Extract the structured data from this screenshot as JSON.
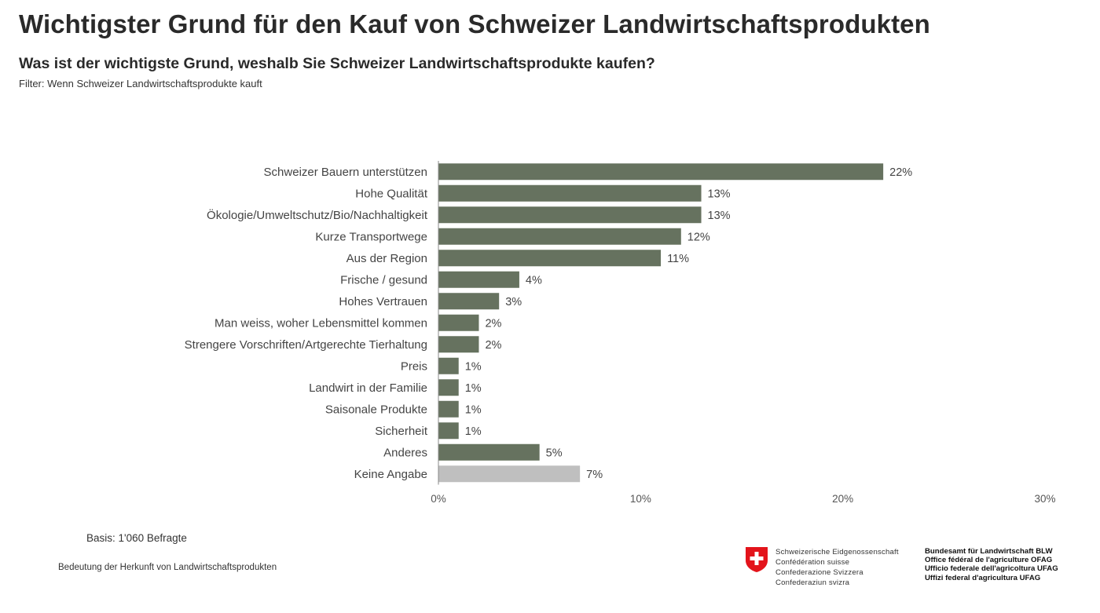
{
  "header": {
    "title": "Wichtigster Grund für den Kauf von Schweizer Landwirtschaftsprodukten",
    "subtitle": "Was ist der wichtigste Grund, weshalb Sie Schweizer Landwirtschaftsprodukte kaufen?",
    "filter": "Filter: Wenn Schweizer Landwirtschaftsprodukte  kauft"
  },
  "chart_data": {
    "type": "bar",
    "orientation": "horizontal",
    "categories": [
      "Schweizer Bauern unterstützen",
      "Hohe Qualität",
      "Ökologie/Umweltschutz/Bio/Nachhaltigkeit",
      "Kurze Transportwege",
      "Aus der Region",
      "Frische / gesund",
      "Hohes Vertrauen",
      "Man weiss, woher Lebensmittel kommen",
      "Strengere Vorschriften/Artgerechte Tierhaltung",
      "Preis",
      "Landwirt in der Familie",
      "Saisonale Produkte",
      "Sicherheit",
      "Anderes",
      "Keine Angabe"
    ],
    "values": [
      22,
      13,
      13,
      12,
      11,
      4,
      3,
      2,
      2,
      1,
      1,
      1,
      1,
      5,
      7
    ],
    "value_labels": [
      "22%",
      "13%",
      "13%",
      "12%",
      "11%",
      "4%",
      "3%",
      "2%",
      "2%",
      "1%",
      "1%",
      "1%",
      "1%",
      "5%",
      "7%"
    ],
    "bar_colors": [
      "#66725f",
      "#66725f",
      "#66725f",
      "#66725f",
      "#66725f",
      "#66725f",
      "#66725f",
      "#66725f",
      "#66725f",
      "#66725f",
      "#66725f",
      "#66725f",
      "#66725f",
      "#66725f",
      "#bfbfbf"
    ],
    "xlim": [
      0,
      30
    ],
    "xticks": [
      0,
      10,
      20,
      30
    ],
    "xtick_labels": [
      "0%",
      "10%",
      "20%",
      "30%"
    ],
    "title": "",
    "xlabel": "",
    "ylabel": "",
    "grid": false
  },
  "footer": {
    "basis": "Basis: 1'060 Befragte",
    "note": "Bedeutung der Herkunft von Landwirtschaftsprodukten",
    "confederation": [
      "Schweizerische Eidgenossenschaft",
      "Confédération suisse",
      "Confederazione Svizzera",
      "Confederaziun svizra"
    ],
    "office": [
      "Bundesamt für Landwirtschaft BLW",
      "Office fédéral de l'agriculture OFAG",
      "Ufficio federale dell'agricoltura UFAG",
      "Uffizi federal d'agricultura UFAG"
    ],
    "flag_color": "#e3141b"
  }
}
